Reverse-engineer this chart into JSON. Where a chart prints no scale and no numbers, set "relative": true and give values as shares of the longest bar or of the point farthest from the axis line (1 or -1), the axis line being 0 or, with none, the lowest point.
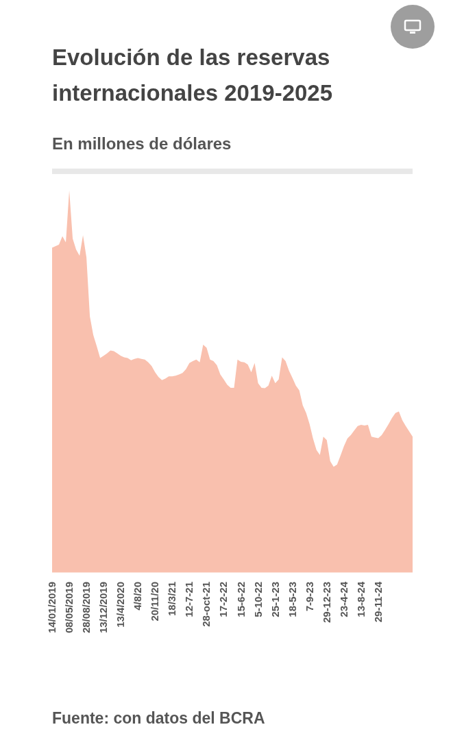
{
  "chart_data": {
    "type": "area",
    "title": "Evolución de las reservas internacionales 2019-2025",
    "subtitle": "En millones de dólares",
    "relative": true,
    "annotations": [
      "Fuente: con datos del BCRA"
    ],
    "categories": [
      "14/01/2019",
      null,
      null,
      null,
      null,
      "08/05/2019",
      null,
      null,
      null,
      null,
      "28/08/2019",
      null,
      null,
      null,
      null,
      "13/12/2019",
      null,
      null,
      null,
      null,
      "13/4/2020",
      null,
      null,
      null,
      null,
      "4/8/20",
      null,
      null,
      null,
      null,
      "20/11/20",
      null,
      null,
      null,
      null,
      "18/3/21",
      null,
      null,
      null,
      null,
      "12-7-21",
      null,
      null,
      null,
      null,
      "28-oct-21",
      null,
      null,
      null,
      null,
      "17-2-22",
      null,
      null,
      null,
      null,
      "15-6-22",
      null,
      null,
      null,
      null,
      "5-10-22",
      null,
      null,
      null,
      null,
      "25-1-23",
      null,
      null,
      null,
      null,
      "18-5-23",
      null,
      null,
      null,
      null,
      "7-9-23",
      null,
      null,
      null,
      null,
      "29-12-23",
      null,
      null,
      null,
      null,
      "23-4-24",
      null,
      null,
      null,
      null,
      "13-8-24",
      null,
      null,
      null,
      null,
      "29-11-24",
      null,
      null,
      null,
      null,
      null,
      null,
      null,
      null,
      null,
      null
    ],
    "series": [
      {
        "color": "#f9c0ae",
        "values": [
          0.85,
          0.854,
          0.858,
          0.88,
          0.864,
          1.0,
          0.874,
          0.845,
          0.829,
          0.883,
          0.825,
          0.67,
          0.621,
          0.592,
          0.561,
          0.567,
          0.573,
          0.581,
          0.579,
          0.573,
          0.567,
          0.563,
          0.561,
          0.555,
          0.559,
          0.561,
          0.559,
          0.557,
          0.55,
          0.54,
          0.524,
          0.511,
          0.503,
          0.507,
          0.513,
          0.513,
          0.515,
          0.518,
          0.522,
          0.532,
          0.548,
          0.553,
          0.557,
          0.55,
          0.596,
          0.588,
          0.557,
          0.553,
          0.542,
          0.518,
          0.505,
          0.491,
          0.483,
          0.483,
          0.557,
          0.551,
          0.55,
          0.544,
          0.524,
          0.548,
          0.495,
          0.483,
          0.482,
          0.489,
          0.515,
          0.495,
          0.505,
          0.563,
          0.553,
          0.528,
          0.509,
          0.489,
          0.476,
          0.437,
          0.417,
          0.388,
          0.35,
          0.32,
          0.307,
          0.355,
          0.346,
          0.291,
          0.276,
          0.282,
          0.305,
          0.33,
          0.35,
          0.359,
          0.371,
          0.383,
          0.386,
          0.384,
          0.386,
          0.355,
          0.353,
          0.351,
          0.359,
          0.373,
          0.388,
          0.404,
          0.417,
          0.421,
          0.398,
          0.383,
          0.369,
          0.355
        ]
      }
    ]
  }
}
